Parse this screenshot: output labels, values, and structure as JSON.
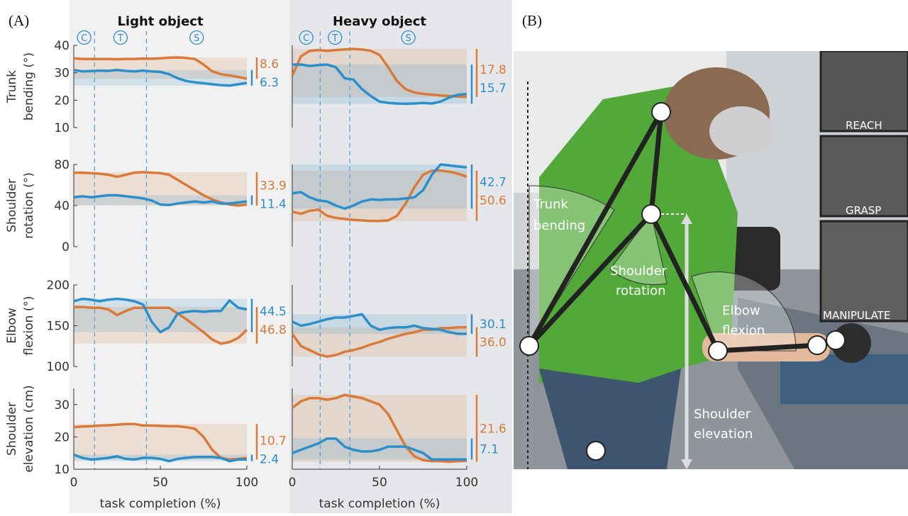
{
  "figure": {
    "panel_a": "(A)",
    "panel_b": "(B)",
    "photo_labels": [
      [
        "Trunk",
        "bending"
      ],
      [
        "Shoulder",
        "rotation"
      ],
      [
        "Elbow",
        "flexion"
      ],
      [
        "Shoulder",
        "elevation"
      ]
    ],
    "insets": [
      "REACH",
      "GRASP",
      "MANIPULATE"
    ]
  },
  "chart_data": [
    {
      "type": "line",
      "title": "Light object",
      "ylabel": [
        "Trunk",
        "bending (°)"
      ],
      "xlim": [
        0,
        100
      ],
      "ylim": [
        10,
        40
      ],
      "yticks": [
        10,
        20,
        30,
        40
      ],
      "phases": [
        12,
        42
      ],
      "phase_labels": [
        "C",
        "T",
        "S"
      ],
      "x": [
        0,
        5,
        10,
        15,
        20,
        25,
        30,
        35,
        40,
        45,
        50,
        55,
        60,
        65,
        70,
        75,
        80,
        85,
        90,
        95,
        100
      ],
      "series": [
        {
          "color": "#d97a3a",
          "range": 8.6,
          "values": [
            35.3,
            35,
            35,
            35,
            35,
            34.9,
            35,
            35,
            35.2,
            35.1,
            35.3,
            35.5,
            35.6,
            35.4,
            35,
            33,
            30.5,
            29.5,
            29,
            28.5,
            27.8
          ]
        },
        {
          "color": "#2c8fc9",
          "range": 6.3,
          "values": [
            31,
            30.5,
            30.6,
            30.8,
            30.7,
            31,
            30.7,
            30.5,
            30.8,
            30.5,
            30.3,
            29.5,
            28,
            27,
            26.5,
            26.2,
            25.8,
            25.5,
            25.3,
            25.8,
            26.3
          ]
        }
      ]
    },
    {
      "type": "line",
      "title": "Heavy object",
      "xlim": [
        0,
        100
      ],
      "ylim": [
        10,
        40
      ],
      "phases": [
        16,
        33
      ],
      "phase_labels": [
        "C",
        "T",
        "S"
      ],
      "x": [
        0,
        5,
        10,
        15,
        20,
        25,
        30,
        35,
        40,
        45,
        50,
        55,
        60,
        65,
        70,
        75,
        80,
        85,
        90,
        95,
        100
      ],
      "series": [
        {
          "color": "#d97a3a",
          "range": 17.8,
          "values": [
            29,
            36,
            38,
            38.3,
            38,
            38.3,
            38.5,
            38.7,
            38.5,
            38,
            36.5,
            32,
            27,
            24,
            22.8,
            22.3,
            22,
            21.7,
            21.5,
            21.3,
            21.2
          ]
        },
        {
          "color": "#2c8fc9",
          "range": 15.7,
          "values": [
            33,
            33,
            32.5,
            32.8,
            33,
            32,
            28,
            27.5,
            24,
            21.5,
            19.5,
            19,
            18.8,
            18.7,
            18.8,
            19,
            18.8,
            19.5,
            21,
            22,
            22.2
          ]
        }
      ]
    },
    {
      "type": "line",
      "ylabel": [
        "Shoulder",
        "rotation (°)"
      ],
      "xlim": [
        0,
        100
      ],
      "ylim": [
        0,
        80
      ],
      "yticks": [
        0,
        40,
        80
      ],
      "phases": [
        12,
        42
      ],
      "x": [
        0,
        5,
        10,
        15,
        20,
        25,
        30,
        35,
        40,
        45,
        50,
        55,
        60,
        65,
        70,
        75,
        80,
        85,
        90,
        95,
        100
      ],
      "series": [
        {
          "color": "#d97a3a",
          "range": 33.9,
          "values": [
            72,
            72,
            71.5,
            71,
            70,
            68,
            70,
            72,
            72.5,
            72,
            71.5,
            70,
            65,
            60,
            55,
            50,
            46,
            43,
            41,
            40,
            41
          ]
        },
        {
          "color": "#2c8fc9",
          "range": 11.4,
          "values": [
            48,
            49,
            48,
            49,
            50,
            50,
            49,
            48,
            47,
            45,
            41,
            40.5,
            42,
            43,
            44,
            43,
            44,
            42,
            42,
            43,
            44
          ]
        }
      ]
    },
    {
      "type": "line",
      "xlim": [
        0,
        100
      ],
      "ylim": [
        0,
        80
      ],
      "phases": [
        16,
        33
      ],
      "x": [
        0,
        5,
        10,
        15,
        20,
        25,
        30,
        35,
        40,
        45,
        50,
        55,
        60,
        65,
        70,
        75,
        80,
        85,
        90,
        95,
        100
      ],
      "series": [
        {
          "color": "#d97a3a",
          "range": 50.6,
          "values": [
            34,
            32,
            35,
            36,
            30,
            28,
            27,
            26,
            25.5,
            25,
            25,
            25.5,
            30,
            42,
            58,
            70,
            74,
            74,
            73,
            71,
            68
          ]
        },
        {
          "color": "#2c8fc9",
          "range": 42.7,
          "values": [
            52,
            53,
            48,
            45,
            44,
            40,
            37,
            40,
            44,
            46,
            45.5,
            46,
            46,
            47,
            48,
            55,
            70,
            80,
            79,
            78,
            77
          ]
        }
      ]
    },
    {
      "type": "line",
      "ylabel": [
        "Elbow",
        "flexion (°)"
      ],
      "xlim": [
        0,
        100
      ],
      "ylim": [
        100,
        200
      ],
      "yticks": [
        100,
        150,
        200
      ],
      "phases": [
        12,
        42
      ],
      "x": [
        0,
        5,
        10,
        15,
        20,
        25,
        30,
        35,
        40,
        45,
        50,
        55,
        60,
        65,
        70,
        75,
        80,
        85,
        90,
        95,
        100
      ],
      "series": [
        {
          "color": "#d97a3a",
          "range": 46.8,
          "values": [
            173,
            173,
            172,
            172,
            170,
            163,
            168,
            172,
            172,
            172,
            172,
            172,
            165,
            158,
            150,
            142,
            133,
            128,
            130,
            135,
            145
          ]
        },
        {
          "color": "#2c8fc9",
          "range": 44.5,
          "values": [
            180,
            183,
            182,
            180,
            182,
            183,
            182,
            180,
            176,
            155,
            142,
            148,
            165,
            167,
            168,
            167,
            168,
            168,
            181,
            172,
            170
          ]
        }
      ]
    },
    {
      "type": "line",
      "xlim": [
        0,
        100
      ],
      "ylim": [
        100,
        200
      ],
      "phases": [
        16,
        33
      ],
      "x": [
        0,
        5,
        10,
        15,
        20,
        25,
        30,
        35,
        40,
        45,
        50,
        55,
        60,
        65,
        70,
        75,
        80,
        85,
        90,
        95,
        100
      ],
      "series": [
        {
          "color": "#d97a3a",
          "range": 36,
          "range_label": "36.0",
          "values": [
            140,
            125,
            120,
            115,
            112,
            114,
            118,
            120,
            123,
            127,
            130,
            134,
            137,
            140,
            142,
            145,
            145,
            147,
            147,
            148,
            148
          ]
        },
        {
          "color": "#2c8fc9",
          "range": 30.1,
          "values": [
            155,
            150,
            152,
            155,
            158,
            160,
            160,
            162,
            164,
            150,
            145,
            147,
            148,
            148,
            150,
            147,
            146,
            145,
            142,
            140,
            140
          ]
        }
      ]
    },
    {
      "type": "line",
      "ylabel": [
        "Shoulder",
        "elevation (cm)"
      ],
      "xlabel": "task completion (%)",
      "xlim": [
        0,
        100
      ],
      "ylim": [
        10,
        35
      ],
      "yticks": [
        10,
        20,
        30
      ],
      "xticks": [
        0,
        50,
        100
      ],
      "phases": [
        12,
        42
      ],
      "x": [
        0,
        5,
        10,
        15,
        20,
        25,
        30,
        35,
        40,
        45,
        50,
        55,
        60,
        65,
        70,
        75,
        80,
        85,
        90,
        95,
        100
      ],
      "series": [
        {
          "color": "#d97a3a",
          "range": 10.7,
          "values": [
            23,
            23.2,
            23.3,
            23.5,
            23.6,
            23.8,
            24,
            24,
            23.5,
            23.5,
            23.4,
            23.3,
            23.3,
            23,
            22.5,
            20,
            16,
            13.5,
            13,
            13.2,
            13.5
          ]
        },
        {
          "color": "#2c8fc9",
          "range": 2.4,
          "values": [
            14.5,
            13.5,
            13,
            13.2,
            13.5,
            14,
            13.2,
            13,
            13.5,
            13.5,
            13.2,
            12.5,
            13.2,
            13.5,
            13.8,
            13.8,
            13.8,
            13.5,
            12.5,
            13,
            13
          ]
        }
      ]
    },
    {
      "type": "line",
      "xlabel": "task completion (%)",
      "xlim": [
        0,
        100
      ],
      "ylim": [
        10,
        35
      ],
      "xticks": [
        0,
        50,
        100
      ],
      "phases": [
        16,
        33
      ],
      "x": [
        0,
        5,
        10,
        15,
        20,
        25,
        30,
        35,
        40,
        45,
        50,
        55,
        60,
        65,
        70,
        75,
        80,
        85,
        90,
        95,
        100
      ],
      "series": [
        {
          "color": "#d97a3a",
          "range": 21.6,
          "values": [
            29,
            31,
            32,
            32,
            31.5,
            32,
            33,
            32.5,
            32,
            31,
            30,
            27,
            22,
            17,
            14,
            12.8,
            12.5,
            12.5,
            12.3,
            12.5,
            12.6
          ]
        },
        {
          "color": "#2c8fc9",
          "range": 7.1,
          "values": [
            15,
            16,
            17,
            18,
            19.5,
            19.5,
            17,
            16,
            15.5,
            15.5,
            16,
            17,
            17,
            17,
            16,
            15,
            13,
            13,
            13,
            13,
            13
          ]
        }
      ]
    }
  ]
}
